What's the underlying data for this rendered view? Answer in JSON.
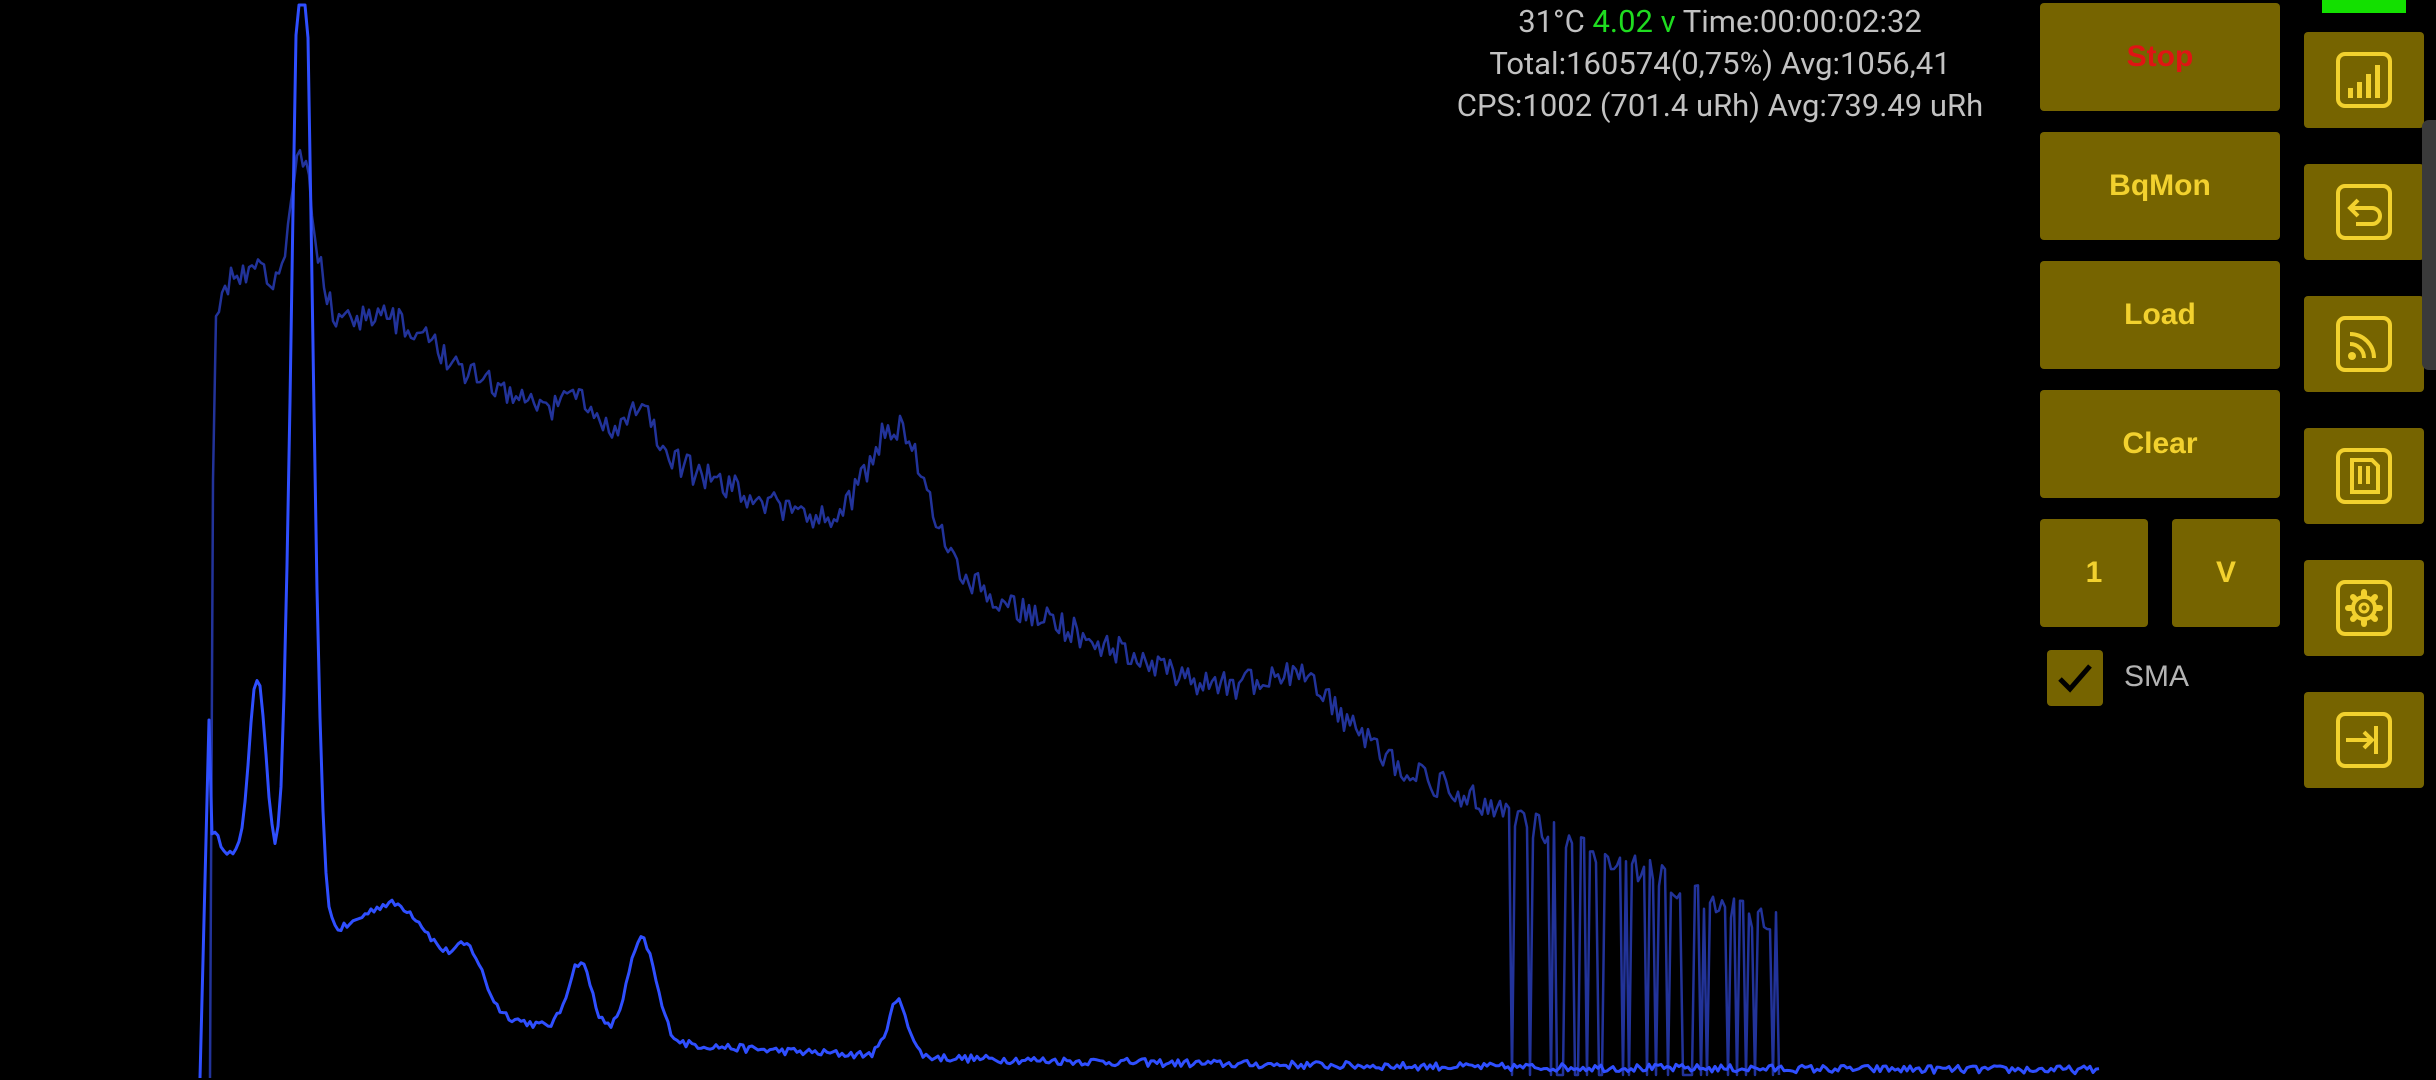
{
  "status": {
    "temperature": "31°C ",
    "voltage": "4.02 v",
    "time": " Time:00:00:02:32",
    "total": "Total:160574(0,75%) Avg:1056,41",
    "cps": "CPS:1002 (701.4 uRh) Avg:739.49 uRh"
  },
  "buttons": {
    "stop": "Stop",
    "bqmon": "BqMon",
    "load": "Load",
    "clear": "Clear",
    "one": "1",
    "v": "V"
  },
  "sma": {
    "label": "SMA",
    "checked": true
  },
  "side_icons": [
    "bar-chart-icon",
    "back-arrow-icon",
    "broadcast-icon",
    "sd-card-icon",
    "gear-icon",
    "exit-icon"
  ],
  "colors": {
    "button_bg": "#766400",
    "button_text": "#f2d12e",
    "stop_text": "#e01414",
    "voltage_text": "#1fdc20",
    "spectrum_line": "#2f4fff",
    "spectrum_line_log": "#22339a",
    "battery": "#13e000"
  }
}
